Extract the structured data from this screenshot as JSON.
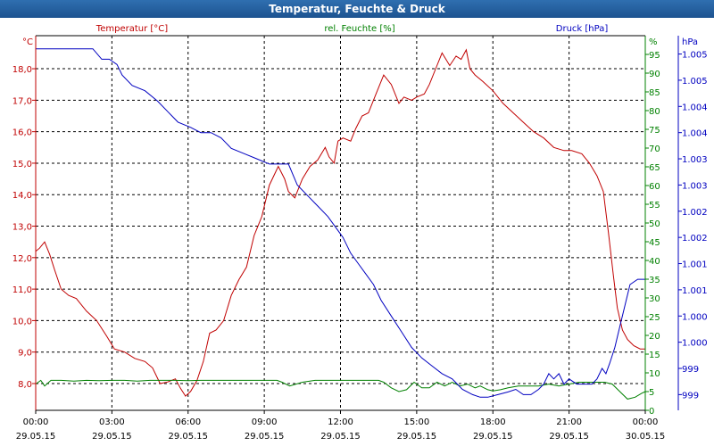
{
  "window": {
    "title": "Temperatur, Feuchte & Druck"
  },
  "colors": {
    "temperature": "#c00000",
    "humidity": "#008000",
    "pressure": "#0000c0",
    "grid": "#000000",
    "axis": "#000000"
  },
  "chart_data": {
    "type": "line",
    "title": "Temperatur, Feuchte & Druck",
    "x_ticks": [
      {
        "time": "00:00",
        "date": "29.05.15"
      },
      {
        "time": "03:00",
        "date": "29.05.15"
      },
      {
        "time": "06:00",
        "date": "29.05.15"
      },
      {
        "time": "09:00",
        "date": "29.05.15"
      },
      {
        "time": "12:00",
        "date": "29.05.15"
      },
      {
        "time": "15:00",
        "date": "29.05.15"
      },
      {
        "time": "18:00",
        "date": "29.05.15"
      },
      {
        "time": "21:00",
        "date": "29.05.15"
      },
      {
        "time": "00:00",
        "date": "30.05.15"
      }
    ],
    "x_range_hours": [
      0,
      24
    ],
    "axes": {
      "temperature": {
        "title": "Temperatur [°C]",
        "unit": "°C",
        "range": [
          7.15,
          19.05
        ],
        "ticks": [
          "8,0",
          "9,0",
          "10,0",
          "11,0",
          "12,0",
          "13,0",
          "14,0",
          "15,0",
          "16,0",
          "17,0",
          "18,0"
        ]
      },
      "humidity": {
        "title": "rel. Feuchte [%]",
        "unit": "%",
        "range": [
          0,
          100
        ],
        "ticks": [
          "0",
          "5",
          "10",
          "15",
          "20",
          "25",
          "30",
          "35",
          "40",
          "45",
          "50",
          "55",
          "60",
          "65",
          "70",
          "75",
          "80",
          "85",
          "90",
          "95"
        ]
      },
      "pressure": {
        "title": "Druck [hPa]",
        "unit": "hPa",
        "range": [
          998.7,
          1005.85
        ],
        "ticks": [
          "999",
          "999",
          "1.000",
          "1.000",
          "1.001",
          "1.001",
          "1.002",
          "1.002",
          "1.003",
          "1.003",
          "1.004",
          "1.004",
          "1.005",
          "1.005"
        ]
      }
    },
    "series": [
      {
        "name": "Temperatur [°C]",
        "axis": "temperature",
        "x": [
          0,
          0.15,
          0.35,
          0.55,
          0.75,
          1.0,
          1.3,
          1.6,
          2.0,
          2.4,
          2.8,
          3.1,
          3.5,
          3.9,
          4.3,
          4.6,
          4.9,
          5.2,
          5.5,
          5.7,
          5.9,
          6.1,
          6.35,
          6.6,
          6.85,
          7.1,
          7.4,
          7.7,
          8.0,
          8.3,
          8.6,
          8.9,
          9.2,
          9.55,
          9.8,
          9.95,
          10.2,
          10.5,
          10.8,
          11.1,
          11.4,
          11.55,
          11.75,
          11.9,
          12.1,
          12.4,
          12.6,
          12.85,
          13.1,
          13.4,
          13.7,
          14.0,
          14.3,
          14.5,
          14.8,
          15.0,
          15.3,
          15.5,
          15.8,
          16.0,
          16.3,
          16.55,
          16.75,
          16.95,
          17.1,
          17.3,
          17.6,
          18.0,
          18.4,
          18.8,
          19.2,
          19.6,
          20.0,
          20.4,
          20.8,
          21.1,
          21.5,
          21.8,
          22.1,
          22.35,
          22.55,
          22.75,
          22.9,
          23.1,
          23.3,
          23.55,
          23.8,
          24.0
        ],
        "values": [
          12.2,
          12.3,
          12.5,
          12.1,
          11.6,
          11.0,
          10.8,
          10.7,
          10.3,
          10.0,
          9.5,
          9.1,
          9.0,
          8.8,
          8.7,
          8.5,
          8.0,
          8.05,
          8.15,
          7.85,
          7.6,
          7.75,
          8.1,
          8.7,
          9.6,
          9.7,
          10.0,
          10.8,
          11.3,
          11.7,
          12.7,
          13.3,
          14.3,
          14.9,
          14.5,
          14.1,
          13.9,
          14.5,
          14.9,
          15.1,
          15.5,
          15.2,
          15.0,
          15.7,
          15.8,
          15.7,
          16.1,
          16.5,
          16.6,
          17.2,
          17.8,
          17.5,
          16.9,
          17.1,
          17.0,
          17.1,
          17.2,
          17.5,
          18.1,
          18.5,
          18.1,
          18.4,
          18.3,
          18.6,
          18.0,
          17.8,
          17.6,
          17.3,
          16.9,
          16.6,
          16.3,
          16.0,
          15.8,
          15.5,
          15.4,
          15.4,
          15.3,
          15.0,
          14.6,
          14.1,
          12.8,
          11.4,
          10.4,
          9.7,
          9.4,
          9.2,
          9.1,
          9.1
        ]
      },
      {
        "name": "rel. Feuchte [%]",
        "axis": "humidity",
        "x": [
          0,
          0.2,
          0.35,
          0.6,
          1.0,
          1.5,
          2.0,
          2.5,
          3.0,
          3.5,
          4.0,
          4.5,
          5.0,
          5.5,
          6.0,
          6.5,
          7.0,
          8.0,
          9.0,
          9.5,
          9.7,
          10.0,
          10.5,
          11.0,
          11.5,
          12.0,
          12.5,
          13.0,
          13.5,
          13.7,
          14.0,
          14.3,
          14.6,
          14.9,
          15.2,
          15.5,
          15.8,
          16.1,
          16.4,
          16.7,
          17.0,
          17.3,
          17.5,
          17.8,
          18.0,
          18.3,
          18.6,
          19.0,
          19.4,
          19.8,
          20.2,
          20.6,
          21.0,
          21.4,
          21.8,
          22.1,
          22.4,
          22.7,
          23.0,
          23.3,
          23.6,
          23.85,
          24.0
        ],
        "values": [
          7,
          8,
          6.5,
          8,
          8,
          7.8,
          8,
          7.9,
          8,
          8,
          7.8,
          8,
          8,
          8,
          7.9,
          8,
          8,
          8,
          8,
          8,
          7.5,
          6.5,
          7.5,
          8,
          8,
          8,
          8,
          8,
          8,
          7.5,
          6,
          5,
          5.5,
          7.5,
          6,
          6,
          7.5,
          6.5,
          7.5,
          6.5,
          7,
          6,
          6.5,
          5.5,
          5.2,
          5.5,
          6,
          6.5,
          6.5,
          6.5,
          7,
          6.5,
          7,
          7.5,
          7.5,
          7.5,
          7.5,
          7,
          5,
          3,
          3.5,
          4.5,
          5
        ]
      },
      {
        "name": "Druck [hPa]",
        "axis": "pressure",
        "x": [
          0,
          2.25,
          2.6,
          2.9,
          3.2,
          3.4,
          3.8,
          4.3,
          4.8,
          5.2,
          5.6,
          6.1,
          6.5,
          6.9,
          7.3,
          7.7,
          8.2,
          8.7,
          9.2,
          9.6,
          9.95,
          10.3,
          10.7,
          11.1,
          11.5,
          11.8,
          12.1,
          12.4,
          12.7,
          13.0,
          13.3,
          13.6,
          14.0,
          14.4,
          14.8,
          15.2,
          15.6,
          16.0,
          16.4,
          16.8,
          17.2,
          17.5,
          17.8,
          18.2,
          18.6,
          18.9,
          19.2,
          19.5,
          19.8,
          20.0,
          20.2,
          20.4,
          20.6,
          20.8,
          21.0,
          21.3,
          21.6,
          21.9,
          22.1,
          22.3,
          22.45,
          22.6,
          22.8,
          23.0,
          23.2,
          23.4,
          23.7,
          24.0
        ],
        "values": [
          1005.6,
          1005.6,
          1005.4,
          1005.4,
          1005.3,
          1005.1,
          1004.9,
          1004.8,
          1004.6,
          1004.4,
          1004.2,
          1004.1,
          1004.0,
          1004.0,
          1003.9,
          1003.7,
          1003.6,
          1003.5,
          1003.4,
          1003.4,
          1003.4,
          1003.0,
          1002.8,
          1002.6,
          1002.4,
          1002.2,
          1002.0,
          1001.7,
          1001.5,
          1001.3,
          1001.1,
          1000.8,
          1000.5,
          1000.2,
          999.9,
          999.7,
          999.55,
          999.4,
          999.3,
          999.1,
          999.0,
          998.95,
          998.95,
          999.0,
          999.05,
          999.1,
          999.0,
          999.0,
          999.1,
          999.2,
          999.4,
          999.3,
          999.4,
          999.2,
          999.3,
          999.2,
          999.2,
          999.2,
          999.3,
          999.5,
          999.4,
          999.6,
          999.9,
          1000.3,
          1000.7,
          1001.1,
          1001.2,
          1001.2
        ]
      }
    ]
  }
}
